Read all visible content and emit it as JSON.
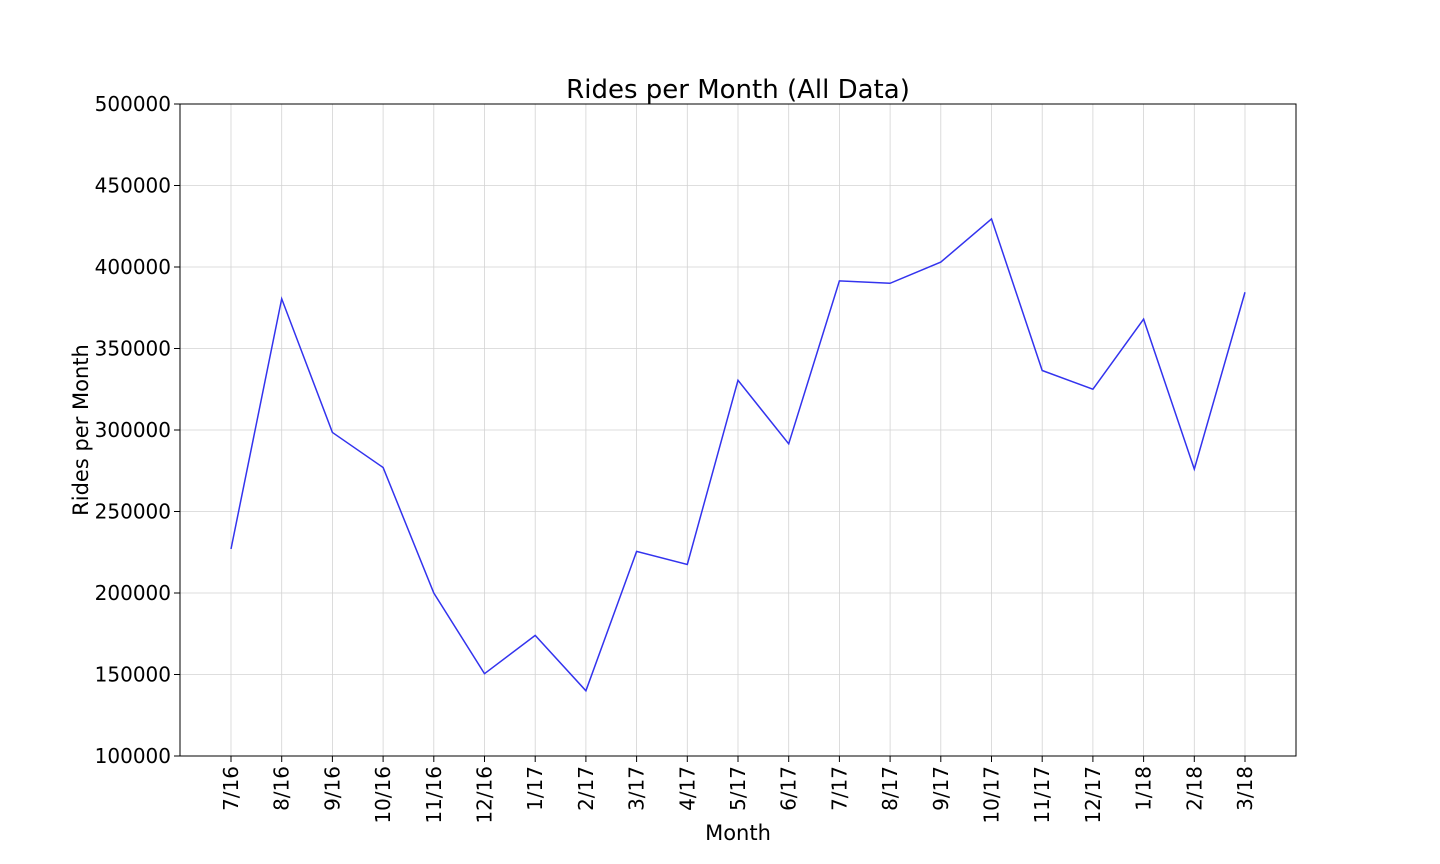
{
  "chart_data": {
    "type": "line",
    "title": "Rides per Month (All Data)",
    "xlabel": "Month",
    "ylabel": "Rides per Month",
    "categories": [
      "7/16",
      "8/16",
      "9/16",
      "10/16",
      "11/16",
      "12/16",
      "1/17",
      "2/17",
      "3/17",
      "4/17",
      "5/17",
      "6/17",
      "7/17",
      "8/17",
      "9/17",
      "10/17",
      "11/17",
      "12/17",
      "1/18",
      "2/18",
      "3/18"
    ],
    "series": [
      {
        "color": "#3333ee",
        "values": [
          227000,
          380500,
          298500,
          277000,
          200000,
          150500,
          174000,
          140000,
          225500,
          217500,
          330500,
          291500,
          391500,
          390000,
          403000,
          429500,
          336500,
          325000,
          368000,
          276000,
          384500
        ]
      }
    ],
    "ylim": [
      100000,
      500000
    ],
    "yticks": [
      100000,
      150000,
      200000,
      250000,
      300000,
      350000,
      400000,
      450000,
      500000
    ],
    "grid": true,
    "x_tick_rotation": "vertical"
  }
}
